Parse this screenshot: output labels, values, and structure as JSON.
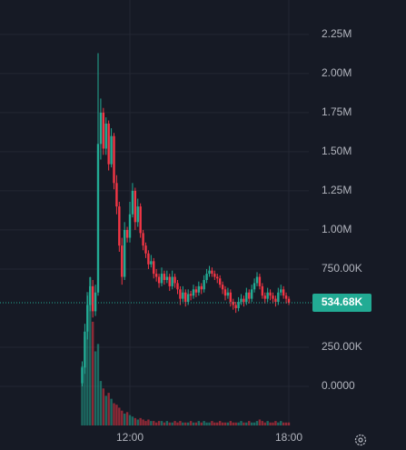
{
  "chart_data": {
    "type": "candlestick",
    "categories": [
      null,
      null,
      null,
      null,
      null,
      null,
      null,
      null,
      null,
      null,
      null,
      null,
      null,
      null,
      null,
      null,
      null,
      null,
      "12:00",
      null,
      null,
      null,
      null,
      null,
      null,
      null,
      null,
      null,
      null,
      null,
      null,
      null,
      null,
      null,
      null,
      null,
      null,
      null,
      null,
      null,
      null,
      null,
      null,
      null,
      null,
      null,
      null,
      null,
      null,
      null,
      null,
      null,
      null,
      null,
      null,
      null,
      null,
      null,
      null,
      null,
      null,
      null,
      null,
      null,
      null,
      null,
      null,
      null,
      null,
      null,
      null,
      null,
      null,
      null,
      null,
      null,
      null,
      null,
      "18:00"
    ],
    "open": [
      20000,
      120000,
      350000,
      520000,
      640000,
      480000,
      600000,
      1550000,
      1750000,
      1520000,
      1680000,
      1420000,
      1600000,
      1300000,
      1150000,
      900000,
      700000,
      1000000,
      950000,
      1100000,
      1250000,
      1050000,
      1150000,
      980000,
      900000,
      850000,
      780000,
      800000,
      720000,
      700000,
      660000,
      720000,
      680000,
      700000,
      640000,
      700000,
      660000,
      620000,
      560000,
      600000,
      540000,
      590000,
      580000,
      620000,
      600000,
      640000,
      620000,
      680000,
      720000,
      740000,
      720000,
      700000,
      690000,
      650000,
      620000,
      580000,
      600000,
      540000,
      520000,
      500000,
      540000,
      560000,
      540000,
      600000,
      560000,
      620000,
      660000,
      700000,
      640000,
      580000,
      560000,
      600000,
      580000,
      560000,
      540000,
      600000,
      620000,
      580000,
      560000
    ],
    "high": [
      160000,
      400000,
      580000,
      700000,
      680000,
      650000,
      2130000,
      1840000,
      1780000,
      1720000,
      1700000,
      1650000,
      1620000,
      1350000,
      1180000,
      950000,
      1050000,
      1020000,
      1180000,
      1300000,
      1270000,
      1200000,
      1170000,
      1000000,
      920000,
      870000,
      840000,
      820000,
      750000,
      720000,
      760000,
      740000,
      740000,
      720000,
      740000,
      720000,
      680000,
      640000,
      640000,
      620000,
      620000,
      610000,
      650000,
      640000,
      670000,
      660000,
      710000,
      750000,
      770000,
      760000,
      740000,
      720000,
      710000,
      670000,
      640000,
      630000,
      620000,
      560000,
      540000,
      570000,
      590000,
      580000,
      630000,
      620000,
      650000,
      690000,
      730000,
      720000,
      660000,
      600000,
      630000,
      620000,
      600000,
      580000,
      630000,
      650000,
      640000,
      600000,
      575000
    ],
    "low": [
      0,
      80000,
      300000,
      480000,
      440000,
      450000,
      580000,
      1450000,
      1480000,
      1480000,
      1380000,
      1400000,
      1260000,
      1100000,
      860000,
      650000,
      680000,
      920000,
      920000,
      1080000,
      1000000,
      1020000,
      950000,
      870000,
      820000,
      750000,
      760000,
      690000,
      670000,
      630000,
      640000,
      650000,
      660000,
      610000,
      620000,
      630000,
      590000,
      520000,
      540000,
      510000,
      520000,
      550000,
      560000,
      570000,
      580000,
      590000,
      600000,
      660000,
      700000,
      700000,
      680000,
      660000,
      630000,
      590000,
      550000,
      560000,
      510000,
      490000,
      470000,
      480000,
      520000,
      510000,
      520000,
      530000,
      540000,
      600000,
      640000,
      620000,
      560000,
      530000,
      540000,
      550000,
      530000,
      510000,
      520000,
      580000,
      560000,
      530000,
      520000
    ],
    "close": [
      120000,
      350000,
      520000,
      640000,
      480000,
      600000,
      1550000,
      1750000,
      1520000,
      1680000,
      1420000,
      1600000,
      1300000,
      1150000,
      900000,
      700000,
      1000000,
      950000,
      1100000,
      1250000,
      1050000,
      1150000,
      980000,
      900000,
      850000,
      780000,
      800000,
      720000,
      700000,
      660000,
      720000,
      680000,
      700000,
      640000,
      700000,
      660000,
      620000,
      560000,
      600000,
      540000,
      590000,
      580000,
      620000,
      600000,
      640000,
      620000,
      680000,
      720000,
      740000,
      720000,
      700000,
      690000,
      650000,
      620000,
      580000,
      600000,
      540000,
      520000,
      500000,
      540000,
      560000,
      540000,
      600000,
      560000,
      620000,
      660000,
      700000,
      640000,
      580000,
      560000,
      600000,
      580000,
      560000,
      540000,
      600000,
      620000,
      580000,
      560000,
      534680
    ],
    "volume": [
      40,
      60,
      90,
      100,
      70,
      50,
      55,
      30,
      25,
      20,
      22,
      18,
      15,
      14,
      12,
      10,
      8,
      9,
      7,
      6,
      5,
      4,
      5,
      4,
      3,
      4,
      3,
      3,
      2,
      3,
      3,
      2,
      3,
      2,
      2,
      3,
      2,
      3,
      2,
      2,
      2,
      3,
      2,
      2,
      3,
      2,
      3,
      2,
      2,
      3,
      2,
      2,
      3,
      2,
      2,
      2,
      3,
      2,
      2,
      2,
      3,
      2,
      2,
      3,
      2,
      2,
      3,
      4,
      3,
      2,
      3,
      2,
      2,
      3,
      2,
      3,
      2,
      2,
      2
    ],
    "volume_lim": [
      0,
      100
    ],
    "up_color": "#22ab94",
    "down_color": "#f23645",
    "ylim": [
      -250000,
      2470000
    ],
    "yticks": [
      {
        "value": 0,
        "label": "0.0000"
      },
      {
        "value": 250000,
        "label": "250.00K"
      },
      {
        "value": 750000,
        "label": "750.00K"
      },
      {
        "value": 1000000,
        "label": "1.00M"
      },
      {
        "value": 1250000,
        "label": "1.25M"
      },
      {
        "value": 1500000,
        "label": "1.50M"
      },
      {
        "value": 1750000,
        "label": "1.75M"
      },
      {
        "value": 2000000,
        "label": "2.00M"
      },
      {
        "value": 2250000,
        "label": "2.25M"
      }
    ],
    "last_price": {
      "value": 534680,
      "label": "534.68K"
    },
    "grid": true
  }
}
